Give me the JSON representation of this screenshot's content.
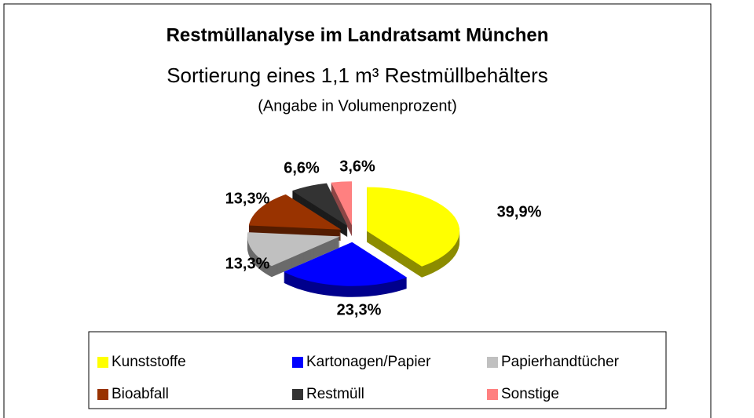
{
  "chart_data": {
    "type": "pie",
    "title": "Restmüllanalyse im Landratsamt München",
    "subtitle": "Sortierung eines 1,1 m³ Restmüllbehälters",
    "note": "(Angabe in Volumenprozent)",
    "categories": [
      "Kunststoffe",
      "Kartonagen/Papier",
      "Papierhandtücher",
      "Bioabfall",
      "Restmüll",
      "Sonstige"
    ],
    "values": [
      39.9,
      23.3,
      13.3,
      13.3,
      6.6,
      3.6
    ],
    "value_labels": [
      "39,9%",
      "23,3%",
      "13,3%",
      "13,3%",
      "6,6%",
      "3,6%"
    ],
    "colors": [
      "#ffff00",
      "#0000ff",
      "#c0c0c0",
      "#993300",
      "#333333",
      "#ff8080"
    ],
    "legend": "bottom"
  }
}
